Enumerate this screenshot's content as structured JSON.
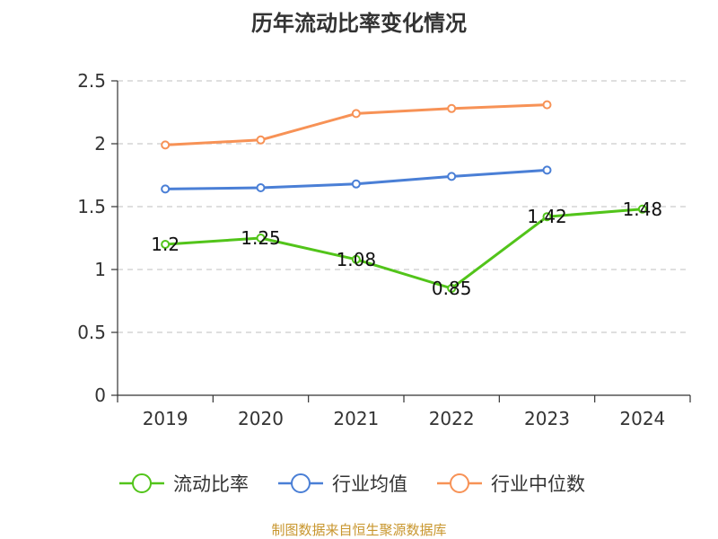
{
  "chart_data": {
    "type": "line",
    "title": "历年流动比率变化情况",
    "categories": [
      "2019",
      "2020",
      "2021",
      "2022",
      "2023",
      "2024"
    ],
    "ylim": [
      0,
      2.5
    ],
    "yticks": [
      0,
      0.5,
      1,
      1.5,
      2,
      2.5
    ],
    "ytick_labels": [
      "0",
      "0.5",
      "1",
      "1.5",
      "2",
      "2.5"
    ],
    "grid": true,
    "legend_position": "bottom",
    "series": [
      {
        "name": "流动比率",
        "color": "#52c41a",
        "values": [
          1.2,
          1.25,
          1.08,
          0.85,
          1.42,
          1.48
        ],
        "labels": [
          "1.2",
          "1.25",
          "1.08",
          "0.85",
          "1.42",
          "1.48"
        ]
      },
      {
        "name": "行业均值",
        "color": "#4a7fd6",
        "values": [
          1.64,
          1.65,
          1.68,
          1.74,
          1.79,
          null
        ]
      },
      {
        "name": "行业中位数",
        "color": "#f79256",
        "values": [
          1.99,
          2.03,
          2.24,
          2.28,
          2.31,
          null
        ]
      }
    ],
    "source": "制图数据来自恒生聚源数据库",
    "source_color": "#c8962e"
  }
}
